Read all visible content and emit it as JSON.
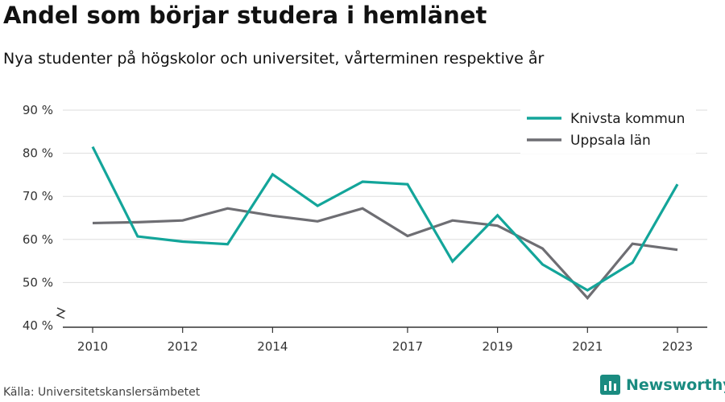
{
  "header": {
    "title": "Andel som börjar studera i hemlänet",
    "subtitle": "Nya studenter på högskolor och universitet, vårterminen respektive år"
  },
  "footer": {
    "source": "Källa: Universitetskanslersämbetet",
    "brand": "Newsworthy"
  },
  "colors": {
    "knivsta": "#13a59a",
    "uppsala": "#6e6e73",
    "grid": "#dddddd",
    "brand": "#1a8b80"
  },
  "chart_data": {
    "type": "line",
    "x": [
      2010,
      2011,
      2012,
      2013,
      2014,
      2015,
      2016,
      2017,
      2018,
      2019,
      2020,
      2021,
      2022,
      2023
    ],
    "x_tick_values": [
      2010,
      2012,
      2014,
      2017,
      2019,
      2021,
      2023
    ],
    "x_tick_labels": [
      "2010",
      "2012",
      "2014",
      "2017",
      "2019",
      "2021",
      "2023"
    ],
    "y_ticks": [
      40,
      50,
      60,
      70,
      80,
      90
    ],
    "y_tick_labels": [
      "40 %",
      "50 %",
      "60 %",
      "70 %",
      "80 %",
      "90 %"
    ],
    "ylim": [
      40,
      90
    ],
    "xlim": [
      2010,
      2023
    ],
    "y_axis_break": true,
    "grid": "horizontal",
    "legend_position": "top-right",
    "series": [
      {
        "name": "Knivsta kommun",
        "color": "#13a59a",
        "values": [
          81.5,
          60.7,
          59.5,
          58.9,
          75.1,
          67.8,
          73.4,
          72.8,
          54.9,
          65.6,
          54.2,
          48.2,
          54.6,
          72.8
        ]
      },
      {
        "name": "Uppsala län",
        "color": "#6e6e73",
        "values": [
          63.8,
          64.0,
          64.4,
          67.2,
          65.5,
          64.2,
          67.2,
          60.8,
          64.4,
          63.2,
          57.9,
          46.4,
          59.0,
          57.6
        ]
      }
    ]
  }
}
